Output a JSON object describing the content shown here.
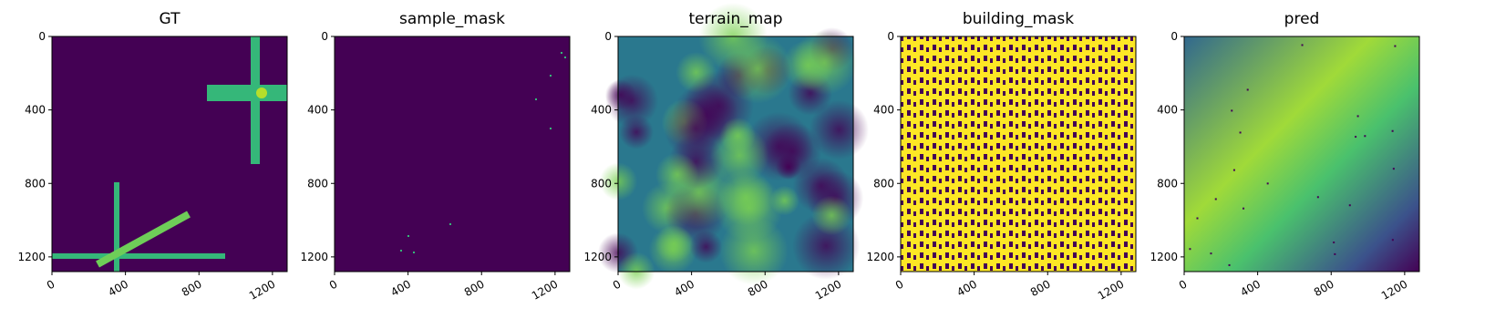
{
  "chart_data": [
    {
      "type": "image",
      "title": "GT",
      "xlim": [
        0,
        1280
      ],
      "ylim": [
        1280,
        0
      ],
      "xticks": [
        0,
        400,
        800,
        1200
      ],
      "yticks": [
        0,
        400,
        800,
        1200
      ]
    },
    {
      "type": "image",
      "title": "sample_mask",
      "xlim": [
        0,
        1280
      ],
      "ylim": [
        1280,
        0
      ],
      "xticks": [
        0,
        400,
        800,
        1200
      ],
      "yticks": [
        0,
        400,
        800,
        1200
      ]
    },
    {
      "type": "image",
      "title": "terrain_map",
      "xlim": [
        0,
        1280
      ],
      "ylim": [
        1280,
        0
      ],
      "xticks": [
        0,
        400,
        800,
        1200
      ],
      "yticks": [
        0,
        400,
        800,
        1200
      ]
    },
    {
      "type": "image",
      "title": "building_mask",
      "xlim": [
        0,
        1280
      ],
      "ylim": [
        1280,
        0
      ],
      "xticks": [
        0,
        400,
        800,
        1200
      ],
      "yticks": [
        0,
        400,
        800,
        1200
      ]
    },
    {
      "type": "image",
      "title": "pred",
      "xlim": [
        0,
        1280
      ],
      "ylim": [
        1280,
        0
      ],
      "xticks": [
        0,
        400,
        800,
        1200
      ],
      "yticks": [
        0,
        400,
        800,
        1200
      ]
    }
  ]
}
